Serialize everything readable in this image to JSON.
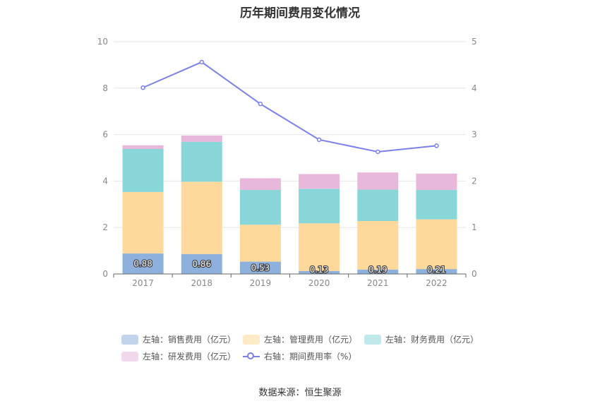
{
  "title": "历年期间费用变化情况",
  "source": "数据来源：恒生聚源",
  "colors": {
    "sales": "#8eb0dd",
    "admin": "#ffd99b",
    "finance": "#88d6d8",
    "rd": "#e8b8da",
    "rate_line": "#7b80ea"
  },
  "legend": [
    {
      "key": "sales",
      "label": "左轴：销售费用（亿元）"
    },
    {
      "key": "admin",
      "label": "左轴：管理费用（亿元）"
    },
    {
      "key": "finance",
      "label": "左轴：财务费用（亿元）"
    },
    {
      "key": "rd",
      "label": "左轴：研发费用（亿元）"
    },
    {
      "key": "rate_line",
      "label": "右轴：期间费用率（%）"
    }
  ],
  "chart_data": {
    "type": "bar",
    "title": "历年期间费用变化情况",
    "categories": [
      "2017",
      "2018",
      "2019",
      "2020",
      "2021",
      "2022"
    ],
    "ylim": [
      0,
      10
    ],
    "y_ticks": [
      0,
      2,
      4,
      6,
      8,
      10
    ],
    "y2lim": [
      0,
      5
    ],
    "y2_ticks": [
      0,
      1,
      2,
      3,
      4,
      5
    ],
    "grid": true,
    "legend_position": "bottom",
    "series": [
      {
        "name": "左轴：销售费用（亿元）",
        "key": "sales",
        "type": "bar",
        "axis": "left",
        "values": [
          0.88,
          0.86,
          0.53,
          0.13,
          0.19,
          0.21
        ],
        "data_labels": [
          "0.88",
          "0.86",
          "0.53",
          "0.13",
          "0.19",
          "0.21"
        ]
      },
      {
        "name": "左轴：管理费用（亿元）",
        "key": "admin",
        "type": "bar",
        "axis": "left",
        "values": [
          2.65,
          3.11,
          1.59,
          2.05,
          2.09,
          2.14
        ]
      },
      {
        "name": "左轴：财务费用（亿元）",
        "key": "finance",
        "type": "bar",
        "axis": "left",
        "values": [
          1.85,
          1.72,
          1.5,
          1.49,
          1.35,
          1.27
        ]
      },
      {
        "name": "左轴：研发费用（亿元）",
        "key": "rd",
        "type": "bar",
        "axis": "left",
        "values": [
          0.16,
          0.27,
          0.5,
          0.63,
          0.74,
          0.7
        ]
      },
      {
        "name": "右轴：期间费用率（%）",
        "key": "rate_line",
        "type": "line",
        "axis": "right",
        "values": [
          4.01,
          4.56,
          3.66,
          2.89,
          2.63,
          2.76
        ]
      }
    ]
  }
}
